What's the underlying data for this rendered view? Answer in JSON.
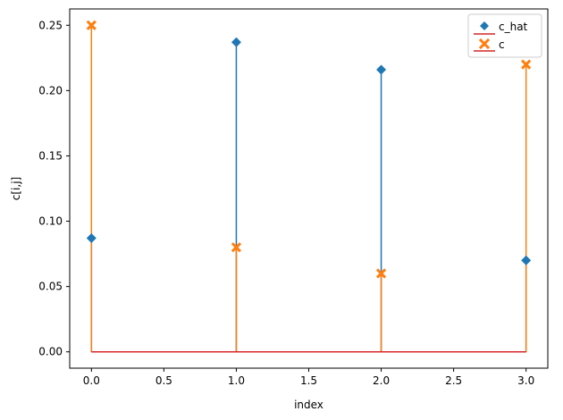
{
  "chart_data": {
    "type": "stem",
    "xlabel": "index",
    "ylabel": "c[i,j]",
    "x": [
      0,
      1,
      2,
      3
    ],
    "xlim": [
      -0.15,
      3.15
    ],
    "ylim": [
      -0.0125,
      0.2625
    ],
    "xticks": [
      0.0,
      0.5,
      1.0,
      1.5,
      2.0,
      2.5,
      3.0
    ],
    "xtick_labels": [
      "0.0",
      "0.5",
      "1.0",
      "1.5",
      "2.0",
      "2.5",
      "3.0"
    ],
    "yticks": [
      0.0,
      0.05,
      0.1,
      0.15,
      0.2,
      0.25
    ],
    "ytick_labels": [
      "0.00",
      "0.05",
      "0.10",
      "0.15",
      "0.20",
      "0.25"
    ],
    "grid": false,
    "legend_position": "top-right",
    "baseline_color": "#d62728",
    "series": [
      {
        "name": "c_hat",
        "values": [
          0.087,
          0.237,
          0.216,
          0.07
        ],
        "color": "#1f77b4",
        "marker": "diamond"
      },
      {
        "name": "c",
        "values": [
          0.25,
          0.08,
          0.06,
          0.22
        ],
        "color": "#ff7f0e",
        "marker": "x-filled"
      }
    ]
  }
}
